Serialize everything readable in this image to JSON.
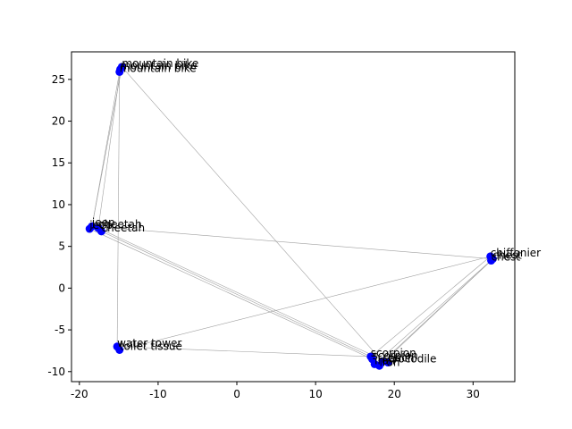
{
  "chart_data": {
    "type": "scatter",
    "title": "",
    "xlabel": "",
    "ylabel": "",
    "xlim": [
      -21,
      35.3
    ],
    "ylim": [
      -11.2,
      28.3
    ],
    "x_ticks": [
      -20,
      -10,
      0,
      10,
      20,
      30
    ],
    "y_ticks": [
      -10,
      -5,
      0,
      5,
      10,
      15,
      20,
      25
    ],
    "grid": false,
    "marker_color": "#0000ff",
    "edge_color": "#a0a0a0",
    "points": [
      {
        "label": "mountain bike",
        "x": -14.6,
        "y": 26.5
      },
      {
        "label": "mountain bike",
        "x": -14.8,
        "y": 26.2
      },
      {
        "label": "mountain bike",
        "x": -14.9,
        "y": 25.9
      },
      {
        "label": "jeep",
        "x": -18.4,
        "y": 7.4
      },
      {
        "label": "cheetah",
        "x": -17.6,
        "y": 7.2
      },
      {
        "label": "jeep",
        "x": -18.7,
        "y": 7.1
      },
      {
        "label": "cheetah",
        "x": -17.2,
        "y": 6.8
      },
      {
        "label": "chiffonier",
        "x": 32.2,
        "y": 3.8
      },
      {
        "label": "chest",
        "x": 32.5,
        "y": 3.5
      },
      {
        "label": "chest",
        "x": 32.3,
        "y": 3.3
      },
      {
        "label": "water tower",
        "x": -15.2,
        "y": -7.0
      },
      {
        "label": "toilet tissue",
        "x": -14.9,
        "y": -7.4
      },
      {
        "label": "scorpion",
        "x": 17.0,
        "y": -8.2
      },
      {
        "label": "scorpion",
        "x": 17.2,
        "y": -8.5
      },
      {
        "label": "coach",
        "x": 18.5,
        "y": -8.8
      },
      {
        "label": "crocodile",
        "x": 19.2,
        "y": -8.9
      },
      {
        "label": "iron",
        "x": 17.5,
        "y": -9.1
      },
      {
        "label": "iron",
        "x": 18.1,
        "y": -9.3
      }
    ],
    "edges": [
      [
        0,
        3
      ],
      [
        1,
        4
      ],
      [
        2,
        10
      ],
      [
        0,
        14
      ],
      [
        3,
        8
      ],
      [
        4,
        15
      ],
      [
        5,
        13
      ],
      [
        6,
        12
      ],
      [
        7,
        11
      ],
      [
        8,
        16
      ],
      [
        9,
        17
      ],
      [
        10,
        12
      ],
      [
        7,
        12
      ],
      [
        9,
        14
      ],
      [
        3,
        2
      ]
    ]
  }
}
